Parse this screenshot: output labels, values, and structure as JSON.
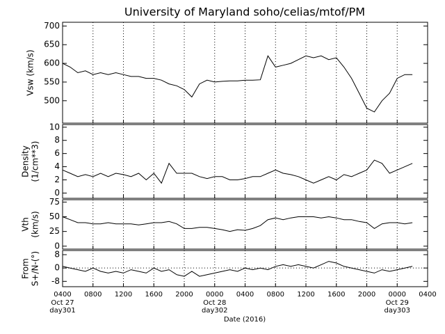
{
  "chart_data": {
    "type": "line",
    "title": "University of Maryland  soho/celias/mtof/PM",
    "xlabel": "Date (2016)",
    "color": "#000000",
    "grid": true,
    "xlim": [
      4,
      52
    ],
    "xticks": [
      {
        "value": 4,
        "label": "0400"
      },
      {
        "value": 8,
        "label": "0800"
      },
      {
        "value": 12,
        "label": "1200"
      },
      {
        "value": 16,
        "label": "1600"
      },
      {
        "value": 20,
        "label": "2000"
      },
      {
        "value": 24,
        "label": "0000"
      },
      {
        "value": 28,
        "label": "0400"
      },
      {
        "value": 32,
        "label": "0800"
      },
      {
        "value": 36,
        "label": "1200"
      },
      {
        "value": 40,
        "label": "1600"
      },
      {
        "value": 44,
        "label": "2000"
      },
      {
        "value": 48,
        "label": "0000"
      },
      {
        "value": 52,
        "label": "0400"
      }
    ],
    "x_sublabels": [
      {
        "value": 4,
        "lines": [
          "Oct 27",
          "day301"
        ]
      },
      {
        "value": 24,
        "lines": [
          "Oct 28",
          "day302"
        ]
      },
      {
        "value": 48,
        "lines": [
          "Oct 29",
          "day303"
        ]
      }
    ],
    "x": [
      4,
      5,
      6,
      7,
      8,
      9,
      10,
      11,
      12,
      13,
      14,
      15,
      16,
      17,
      18,
      19,
      20,
      21,
      22,
      23,
      24,
      25,
      26,
      27,
      28,
      29,
      30,
      31,
      32,
      33,
      34,
      35,
      36,
      37,
      38,
      39,
      40,
      41,
      42,
      43,
      44,
      45,
      46,
      47,
      48,
      49,
      50
    ],
    "panels": [
      {
        "ylabel": [
          "Vsw (km/s)"
        ],
        "ylim": [
          440,
          710
        ],
        "yticks": [
          500,
          550,
          600,
          650,
          700
        ],
        "values": [
          600,
          590,
          575,
          580,
          570,
          575,
          570,
          575,
          570,
          565,
          565,
          560,
          560,
          555,
          545,
          540,
          530,
          510,
          545,
          555,
          550,
          552,
          553,
          553,
          555,
          555,
          556,
          620,
          590,
          595,
          600,
          610,
          620,
          615,
          620,
          610,
          615,
          590,
          560,
          520,
          480,
          470,
          500,
          520,
          560,
          570,
          570
        ]
      },
      {
        "ylabel": [
          "Density",
          "(1/cm**3)"
        ],
        "ylim": [
          -0.8,
          10.4
        ],
        "yticks": [
          0,
          2,
          4,
          6,
          8,
          10
        ],
        "values": [
          3.5,
          3,
          2.5,
          2.8,
          2.5,
          3,
          2.5,
          3,
          2.8,
          2.5,
          3,
          2,
          3,
          1.5,
          4.5,
          3,
          3,
          3,
          2.5,
          2.2,
          2.5,
          2.5,
          2,
          2,
          2.2,
          2.5,
          2.5,
          3,
          3.5,
          3,
          2.8,
          2.5,
          2,
          1.5,
          2,
          2.5,
          2,
          2.8,
          2.5,
          3,
          3.5,
          5,
          4.5,
          3,
          3.5,
          4,
          4.5
        ]
      },
      {
        "ylabel": [
          "Vth",
          "(km/s)"
        ],
        "ylim": [
          -5,
          79
        ],
        "yticks": [
          0,
          25,
          50,
          75
        ],
        "values": [
          50,
          45,
          40,
          40,
          38,
          38,
          40,
          38,
          38,
          38,
          36,
          38,
          40,
          40,
          42,
          38,
          30,
          30,
          32,
          32,
          30,
          28,
          25,
          28,
          27,
          30,
          35,
          45,
          48,
          45,
          48,
          50,
          50,
          50,
          48,
          50,
          48,
          45,
          45,
          42,
          40,
          30,
          38,
          40,
          40,
          38,
          40
        ]
      },
      {
        "ylabel": [
          "From",
          "S+/N-(°)"
        ],
        "ylim": [
          -11.2,
          10.5
        ],
        "yticks": [
          -8,
          0,
          8
        ],
        "hline": 0,
        "values": [
          1,
          0,
          -1,
          -2,
          0,
          -2,
          -3,
          -2,
          -3,
          -1,
          -2,
          -3,
          0,
          -2,
          -1,
          -4,
          -5,
          -2,
          -5,
          -4,
          -3,
          -2,
          -1,
          -2,
          0,
          -1,
          0,
          -1,
          1,
          2,
          1,
          2,
          1,
          0,
          2,
          4,
          3,
          1,
          0,
          -1,
          -2,
          -3,
          -1,
          -2,
          -1,
          0,
          1
        ]
      }
    ]
  }
}
